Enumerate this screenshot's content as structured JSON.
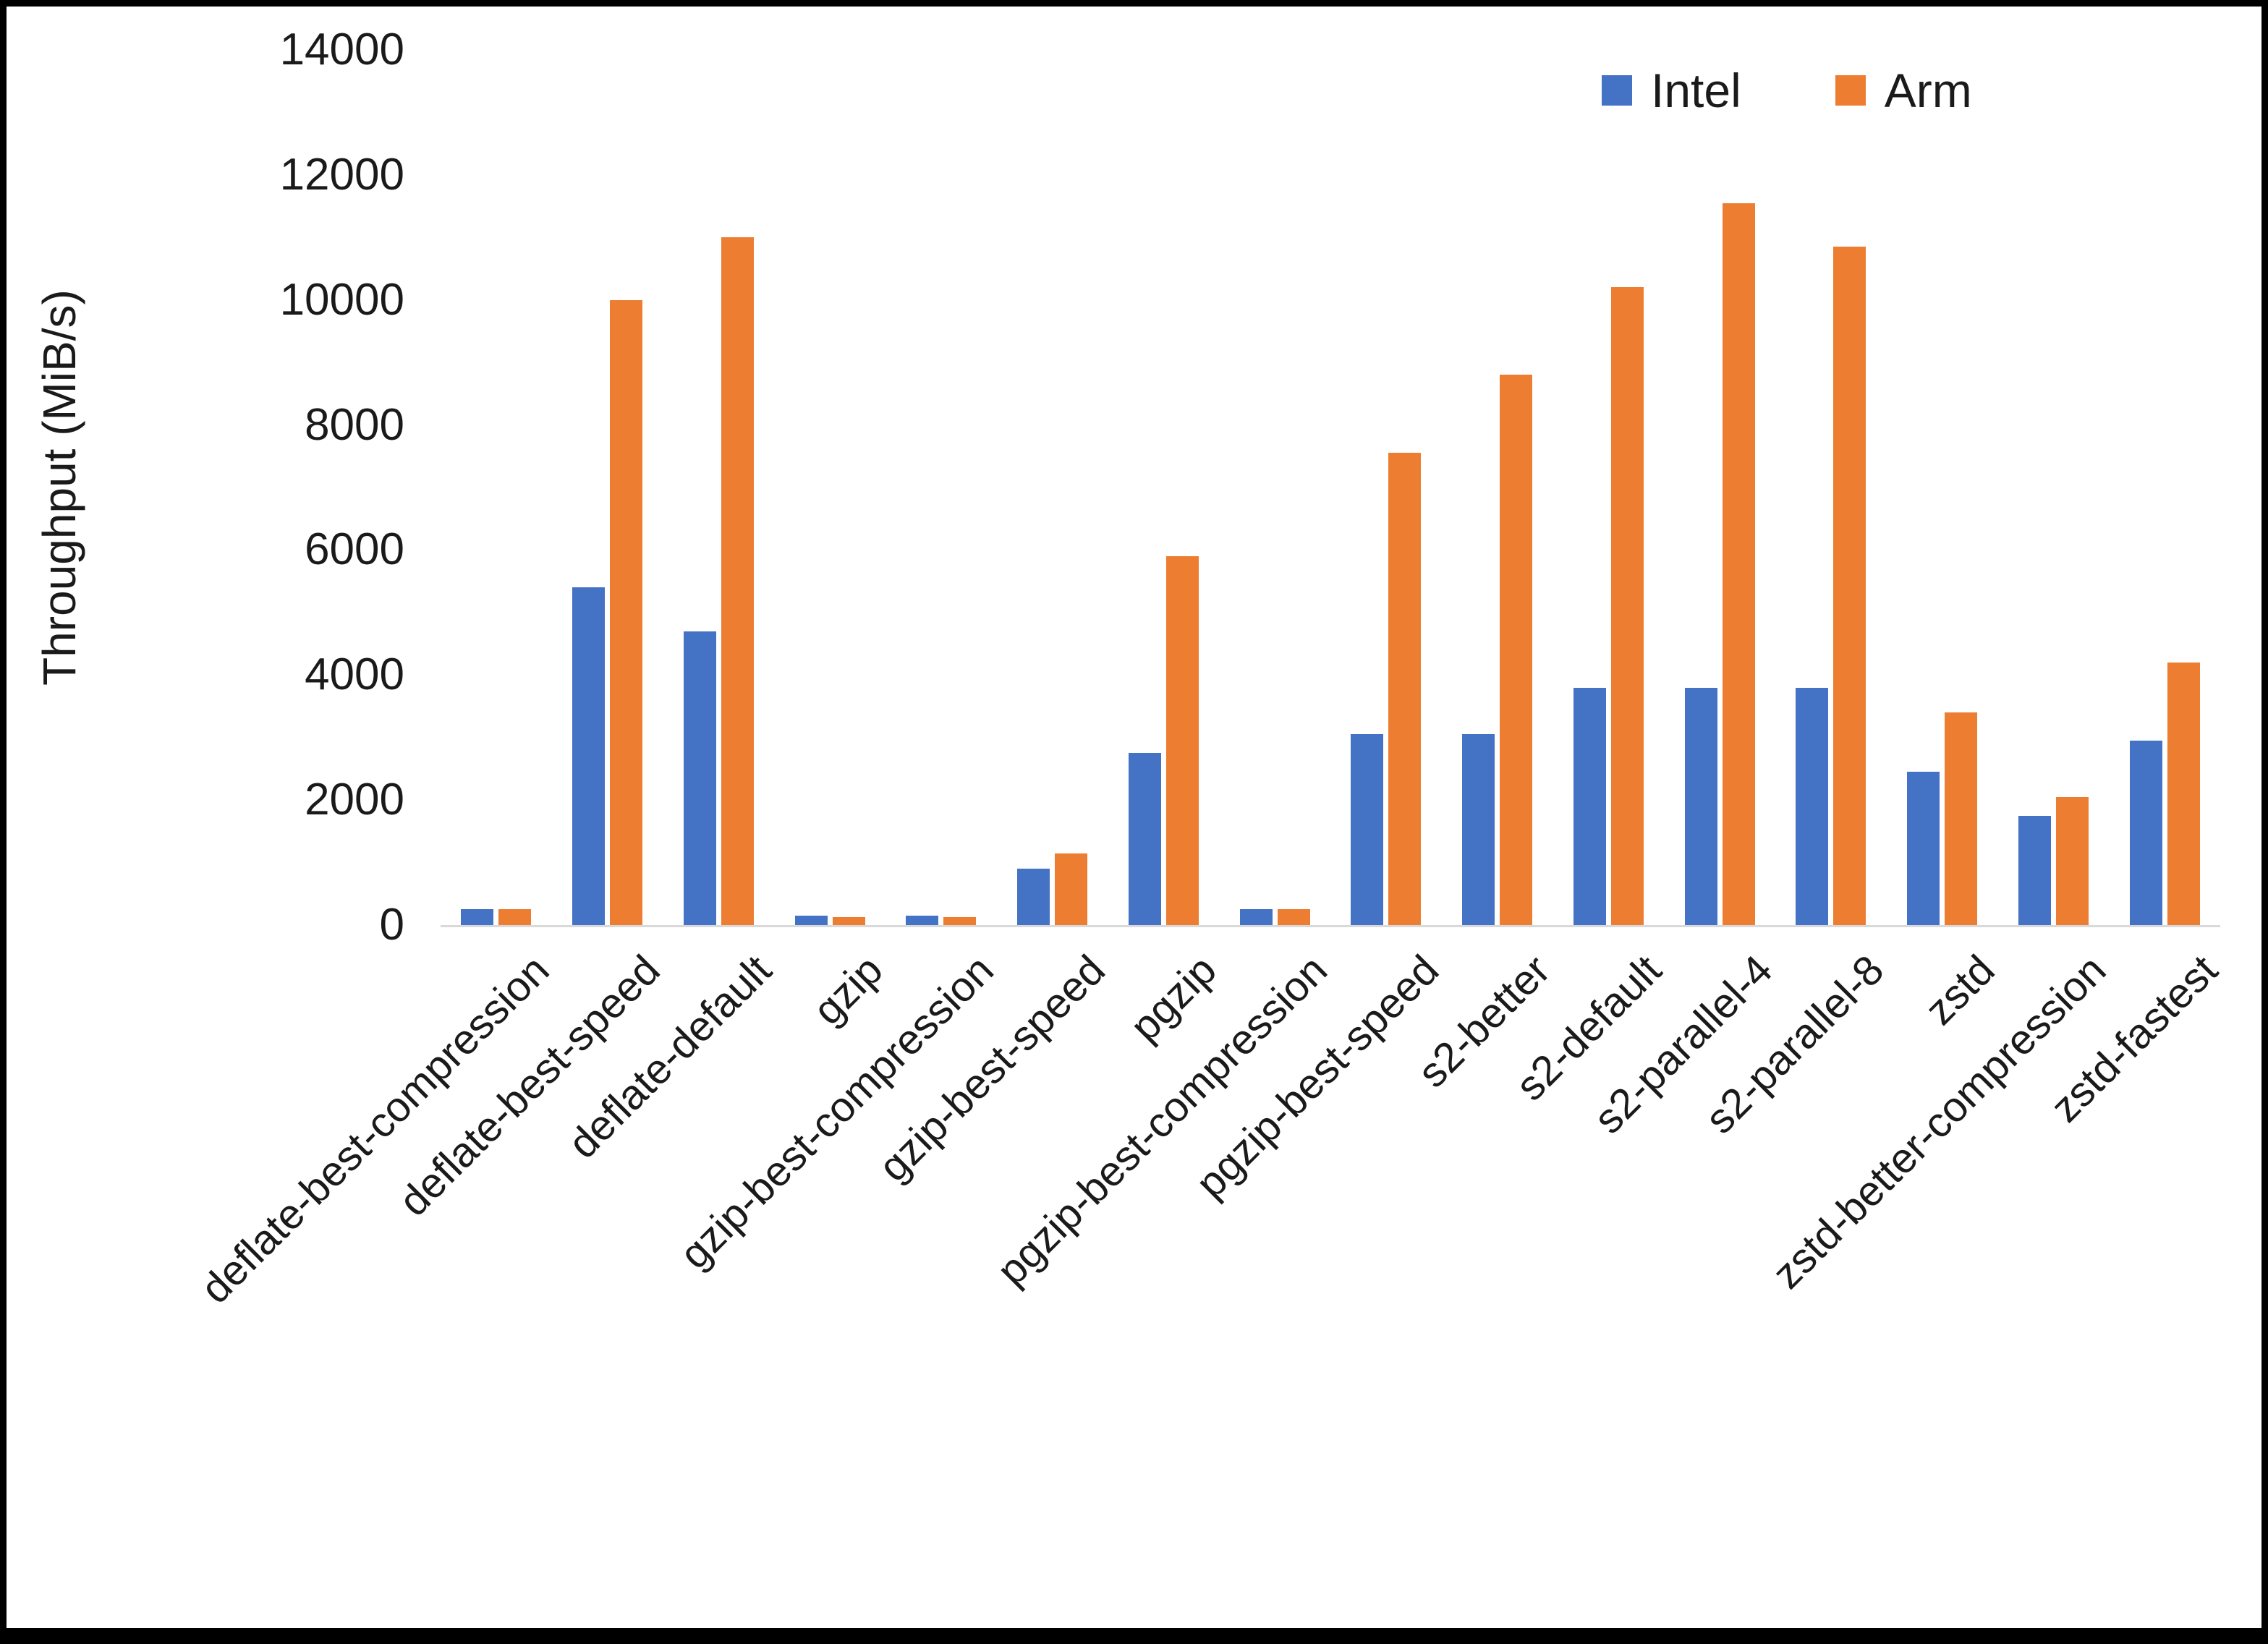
{
  "chart_data": {
    "type": "bar",
    "title": "",
    "xlabel": "",
    "ylabel": "Throughput (MiB/s)",
    "ylim": [
      0,
      14000
    ],
    "ytick_step": 2000,
    "grid": false,
    "legend_position": "top-right",
    "categories": [
      "deflate-best-compression",
      "deflate-best-speed",
      "deflate-default",
      "gzip",
      "gzip-best-compression",
      "gzip-best-speed",
      "pgzip",
      "pgzip-best-compression",
      "pgzip-best-speed",
      "s2-better",
      "s2-default",
      "s2-parallel-4",
      "s2-parallel-8",
      "zstd",
      "zstd-better-compression",
      "zstd-fastest"
    ],
    "series": [
      {
        "name": "Intel",
        "color": "#4472C4",
        "values": [
          250,
          5400,
          4700,
          150,
          150,
          900,
          2750,
          250,
          3050,
          3050,
          3800,
          3800,
          3800,
          2450,
          1750,
          2950
        ]
      },
      {
        "name": "Arm",
        "color": "#ED7D31",
        "values": [
          250,
          10000,
          11000,
          130,
          130,
          1150,
          5900,
          250,
          7550,
          8800,
          10200,
          11550,
          10850,
          3400,
          2050,
          4200
        ]
      }
    ]
  }
}
